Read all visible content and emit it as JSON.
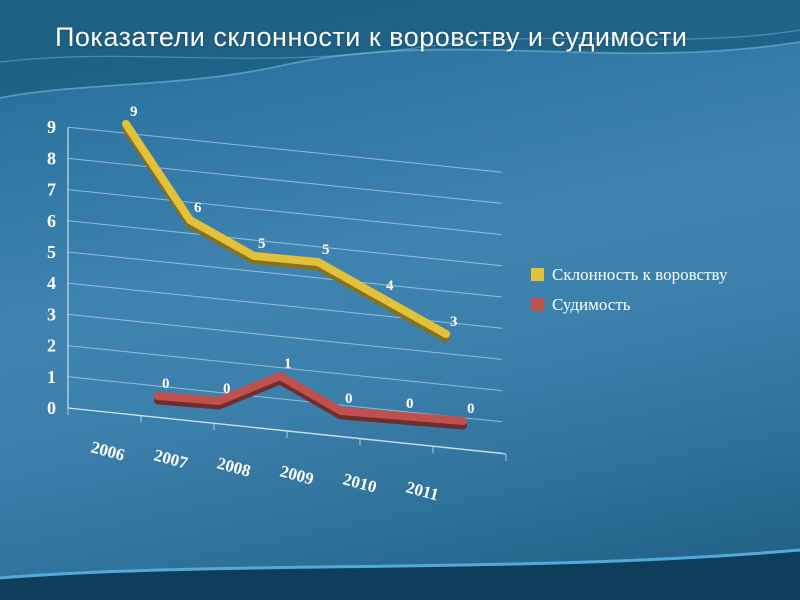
{
  "slide": {
    "title": "Показатели склонности к воровству и судимости"
  },
  "chart_data": {
    "type": "line",
    "style": "3d-perspective",
    "title": "",
    "categories": [
      "2006",
      "2007",
      "2008",
      "2009",
      "2010",
      "2011"
    ],
    "series": [
      {
        "name": "Склонность к воровству",
        "color": "#e3c23a",
        "values": [
          9,
          6,
          5,
          5,
          4,
          3
        ]
      },
      {
        "name": "Судимость",
        "color": "#c0504d",
        "values": [
          0,
          0,
          1,
          0,
          0,
          0
        ]
      }
    ],
    "ylim": [
      0,
      9
    ],
    "yticks": [
      0,
      1,
      2,
      3,
      4,
      5,
      6,
      7,
      8,
      9
    ],
    "grid": true,
    "legend_position": "right",
    "data_labels": true
  },
  "colors": {
    "background_top": "#1e6387",
    "background_mid": "#3f83b0",
    "background_bottom": "#0e3e5c",
    "grid_line": "rgba(225,238,246,0.55)",
    "text": "#ffffff"
  }
}
